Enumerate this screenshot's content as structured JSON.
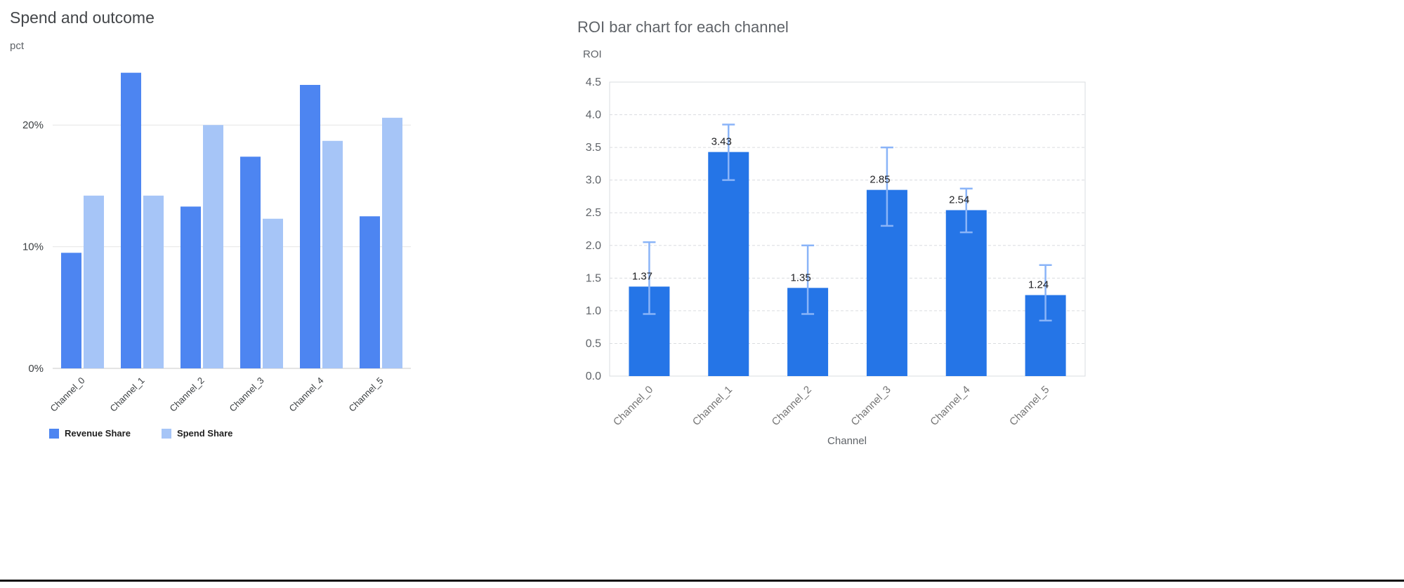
{
  "colors": {
    "revenue_bar": "#4d85f1",
    "spend_bar": "#a6c5f7",
    "roi_bar": "#2575e7",
    "error_bar": "#8ab4f8",
    "gridline": "#e6e6e6",
    "plot_border": "#dadce0",
    "text_dark": "#3c4043",
    "text_gray": "#5f6368"
  },
  "chart_data": [
    {
      "type": "bar",
      "title": "Spend and outcome",
      "ylabel": "pct",
      "xlabel": "",
      "categories": [
        "Channel_0",
        "Channel_1",
        "Channel_2",
        "Channel_3",
        "Channel_4",
        "Channel_5"
      ],
      "series": [
        {
          "name": "Revenue Share",
          "color": "#4d85f1",
          "values": [
            9.5,
            24.3,
            13.3,
            17.4,
            23.3,
            12.5
          ]
        },
        {
          "name": "Spend Share",
          "color": "#a6c5f7",
          "values": [
            14.2,
            14.2,
            20.0,
            12.3,
            18.7,
            20.6
          ]
        }
      ],
      "y_ticks": [
        "0%",
        "10%",
        "20%"
      ],
      "y_tick_values": [
        0,
        10,
        20
      ],
      "ylim": [
        0,
        24.8
      ],
      "grid": true,
      "legend_position": "bottom"
    },
    {
      "type": "bar",
      "title": "ROI bar chart for each channel",
      "ylabel": "ROI",
      "xlabel": "Channel",
      "categories": [
        "Channel_0",
        "Channel_1",
        "Channel_2",
        "Channel_3",
        "Channel_4",
        "Channel_5"
      ],
      "values": [
        1.37,
        3.43,
        1.35,
        2.85,
        2.54,
        1.24
      ],
      "value_labels": [
        "1.37",
        "3.43",
        "1.35",
        "2.85",
        "2.54",
        "1.24"
      ],
      "error_low": [
        0.95,
        3.0,
        0.95,
        2.3,
        2.2,
        0.85
      ],
      "error_high": [
        2.05,
        3.85,
        2.0,
        3.5,
        2.87,
        1.7
      ],
      "bar_color": "#2575e7",
      "error_color": "#8ab4f8",
      "ylim": [
        0,
        4.5
      ],
      "y_tick_step": 0.5,
      "grid": "dashed",
      "legend_position": "none"
    }
  ]
}
